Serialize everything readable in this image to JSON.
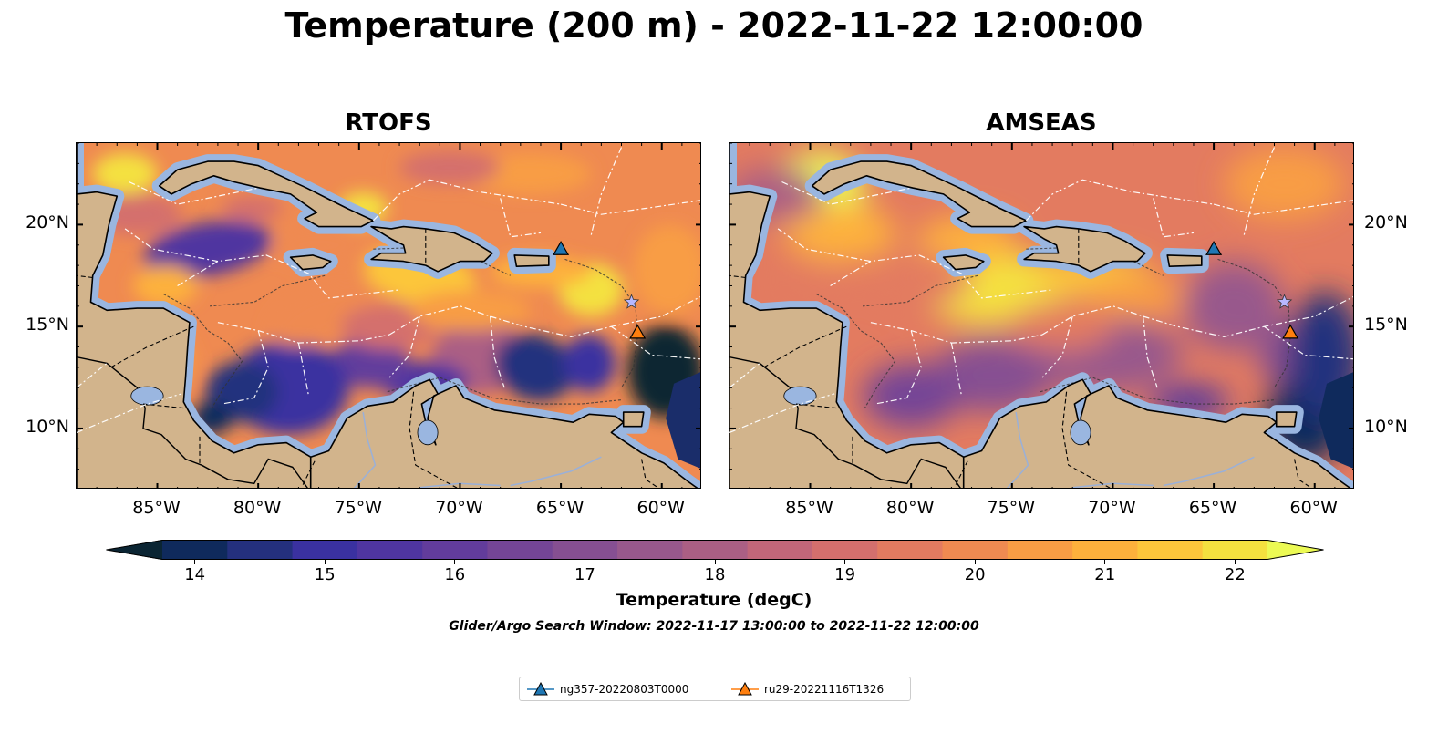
{
  "title": "Temperature (200 m) - 2022-11-22 12:00:00",
  "panels": [
    {
      "title": "RTOFS",
      "style": "eddy"
    },
    {
      "title": "AMSEAS",
      "style": "smooth"
    }
  ],
  "map": {
    "lon_range": [
      -89,
      -58
    ],
    "lat_range": [
      7,
      24
    ],
    "lon_ticks": [
      -85,
      -80,
      -75,
      -70,
      -65,
      -60
    ],
    "lon_tick_labels": [
      "85°W",
      "80°W",
      "75°W",
      "70°W",
      "65°W",
      "60°W"
    ],
    "lat_ticks": [
      10,
      15,
      20
    ],
    "lat_tick_labels": [
      "10°N",
      "15°N",
      "20°N"
    ],
    "land_color": "#d2b48c",
    "shelf_color": "#9ab6e0"
  },
  "colorbar": {
    "label": "Temperature (degC)",
    "min": 14,
    "max": 22,
    "step": 0.5,
    "extend": "both",
    "ticks": [
      14,
      15,
      16,
      17,
      18,
      19,
      20,
      21,
      22
    ],
    "colors": [
      "#0b2533",
      "#0f2a5c",
      "#24307e",
      "#3a31a0",
      "#4f35a0",
      "#623c9c",
      "#744596",
      "#864f92",
      "#98588c",
      "#ab5f84",
      "#c16679",
      "#d46f6d",
      "#e37b60",
      "#ef8a51",
      "#f89d44",
      "#fdb13c",
      "#fcc63b",
      "#f4e13f",
      "#ecfa54"
    ]
  },
  "search_window": "Glider/Argo Search Window: 2022-11-17 13:00:00 to 2022-11-22 12:00:00",
  "legend": [
    {
      "label": "ng357-20220803T0000",
      "color": "#1f77b4"
    },
    {
      "label": "ru29-20221116T1326",
      "color": "#ff7f0e"
    }
  ],
  "markers": [
    {
      "lon": -65.0,
      "lat": 18.8,
      "color": "#1f77b4",
      "shape": "triangle"
    },
    {
      "lon": -61.2,
      "lat": 14.7,
      "color": "#ff7f0e",
      "shape": "triangle"
    },
    {
      "lon": -61.5,
      "lat": 16.2,
      "color": "#b8b8ff",
      "shape": "star"
    }
  ]
}
